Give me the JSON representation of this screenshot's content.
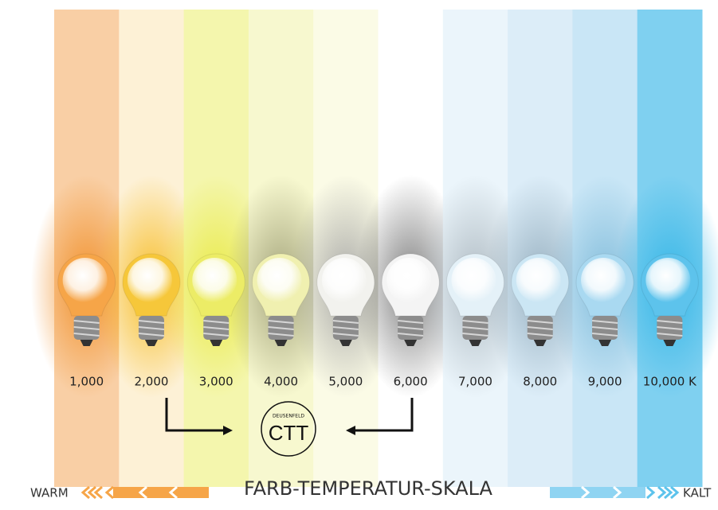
{
  "scale": {
    "labels": [
      "1,000",
      "2,000",
      "3,000",
      "4,000",
      "5,000",
      "6,000",
      "7,000",
      "8,000",
      "9,000",
      "10,000 K"
    ]
  },
  "logo": {
    "brand": "DEUSENFELD",
    "mark": "CTT"
  },
  "footer": {
    "warm": "WARM",
    "title": "FARB-TEMPERATUR-SKALA",
    "cold": "KALT"
  }
}
